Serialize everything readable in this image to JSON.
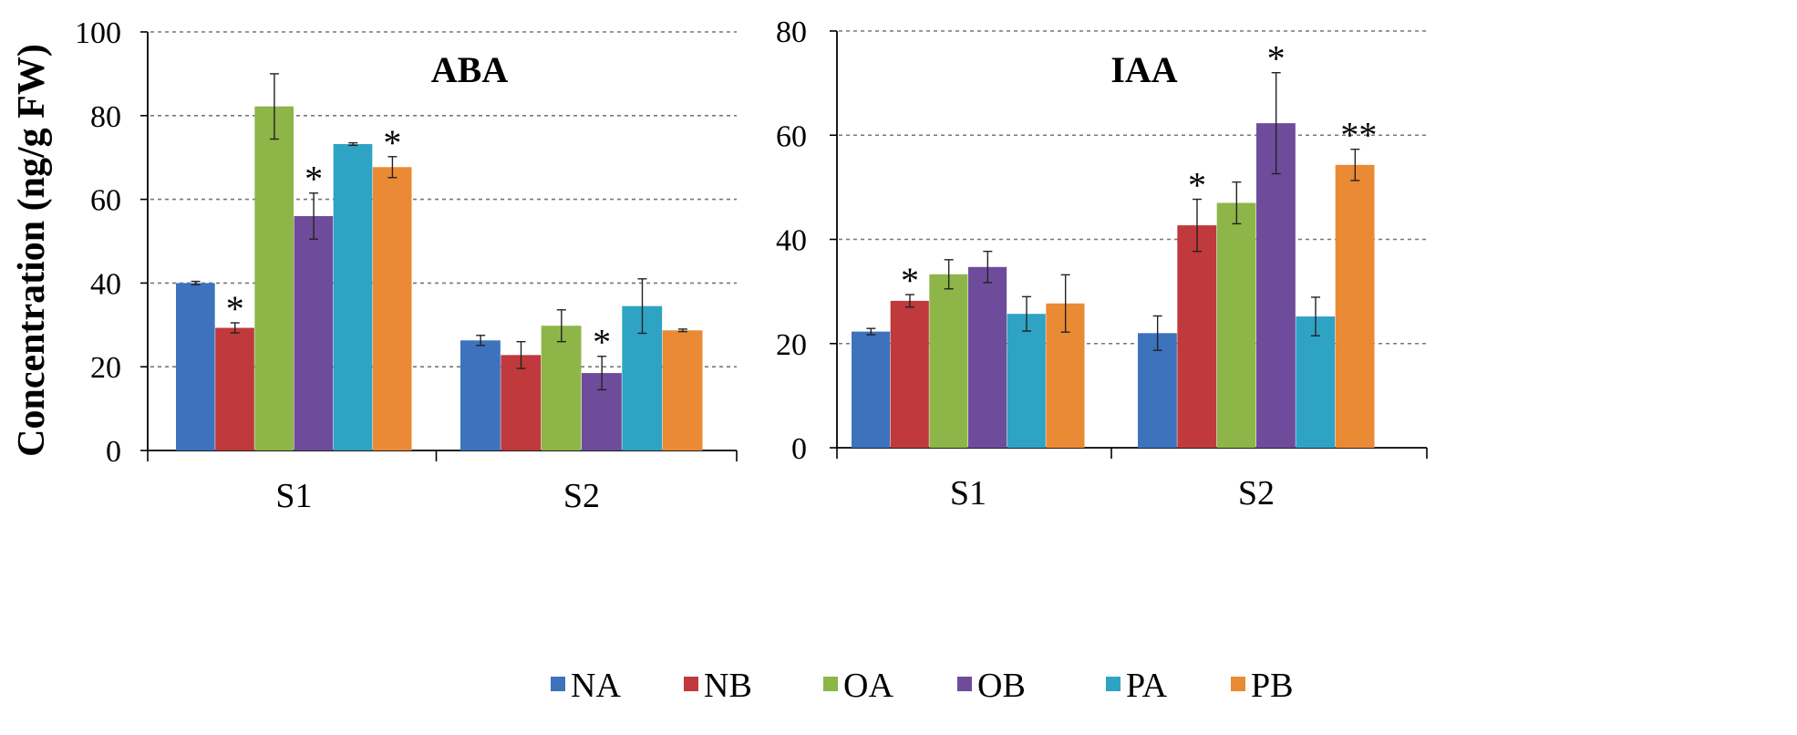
{
  "legend": [
    "NA",
    "NB",
    "OA",
    "OB",
    "PA",
    "PB"
  ],
  "colors": {
    "NA": "#3d72bd",
    "NB": "#c0393c",
    "OA": "#8db548",
    "OB": "#6f4c9b",
    "PA": "#2fa3c4",
    "PB": "#ea8a35"
  },
  "chart_data": [
    {
      "type": "bar",
      "title": "ABA",
      "ylabel": "Concentration (ng/g FW)",
      "xlabel": "",
      "categories": [
        "S1",
        "S2"
      ],
      "ylim": [
        0,
        100
      ],
      "yticks": [
        0,
        20,
        40,
        60,
        80,
        100
      ],
      "grid": true,
      "series": [
        {
          "name": "NA",
          "values": [
            40,
            26.3
          ],
          "errors": [
            0.4,
            1.2
          ],
          "marks": [
            "",
            ""
          ]
        },
        {
          "name": "NB",
          "values": [
            29.3,
            22.8
          ],
          "errors": [
            1.2,
            3.2
          ],
          "marks": [
            "*",
            ""
          ]
        },
        {
          "name": "OA",
          "values": [
            82.2,
            29.8
          ],
          "errors": [
            7.8,
            3.8
          ],
          "marks": [
            "",
            ""
          ]
        },
        {
          "name": "OB",
          "values": [
            56,
            18.5
          ],
          "errors": [
            5.5,
            4
          ],
          "marks": [
            "*",
            "*"
          ]
        },
        {
          "name": "PA",
          "values": [
            73.2,
            34.5
          ],
          "errors": [
            0.3,
            6.5
          ],
          "marks": [
            "",
            ""
          ]
        },
        {
          "name": "PB",
          "values": [
            67.7,
            28.7
          ],
          "errors": [
            2.5,
            0.3
          ],
          "marks": [
            "*",
            ""
          ]
        }
      ]
    },
    {
      "type": "bar",
      "title": "IAA",
      "ylabel": "",
      "xlabel": "",
      "categories": [
        "S1",
        "S2"
      ],
      "ylim": [
        0,
        80
      ],
      "yticks": [
        0,
        20,
        40,
        60,
        80
      ],
      "grid": true,
      "series": [
        {
          "name": "NA",
          "values": [
            22.3,
            22
          ],
          "errors": [
            0.6,
            3.3
          ],
          "marks": [
            "",
            ""
          ]
        },
        {
          "name": "NB",
          "values": [
            28.2,
            42.7
          ],
          "errors": [
            1.2,
            5
          ],
          "marks": [
            "*",
            "*"
          ]
        },
        {
          "name": "OA",
          "values": [
            33.3,
            47
          ],
          "errors": [
            2.8,
            4
          ],
          "marks": [
            "",
            ""
          ]
        },
        {
          "name": "OB",
          "values": [
            34.7,
            62.3
          ],
          "errors": [
            3,
            9.7
          ],
          "marks": [
            "",
            "*"
          ]
        },
        {
          "name": "PA",
          "values": [
            25.7,
            25.2
          ],
          "errors": [
            3.3,
            3.7
          ],
          "marks": [
            "",
            ""
          ]
        },
        {
          "name": "PB",
          "values": [
            27.7,
            54.3
          ],
          "errors": [
            5.5,
            3
          ],
          "marks": [
            "",
            "**"
          ]
        }
      ]
    }
  ]
}
